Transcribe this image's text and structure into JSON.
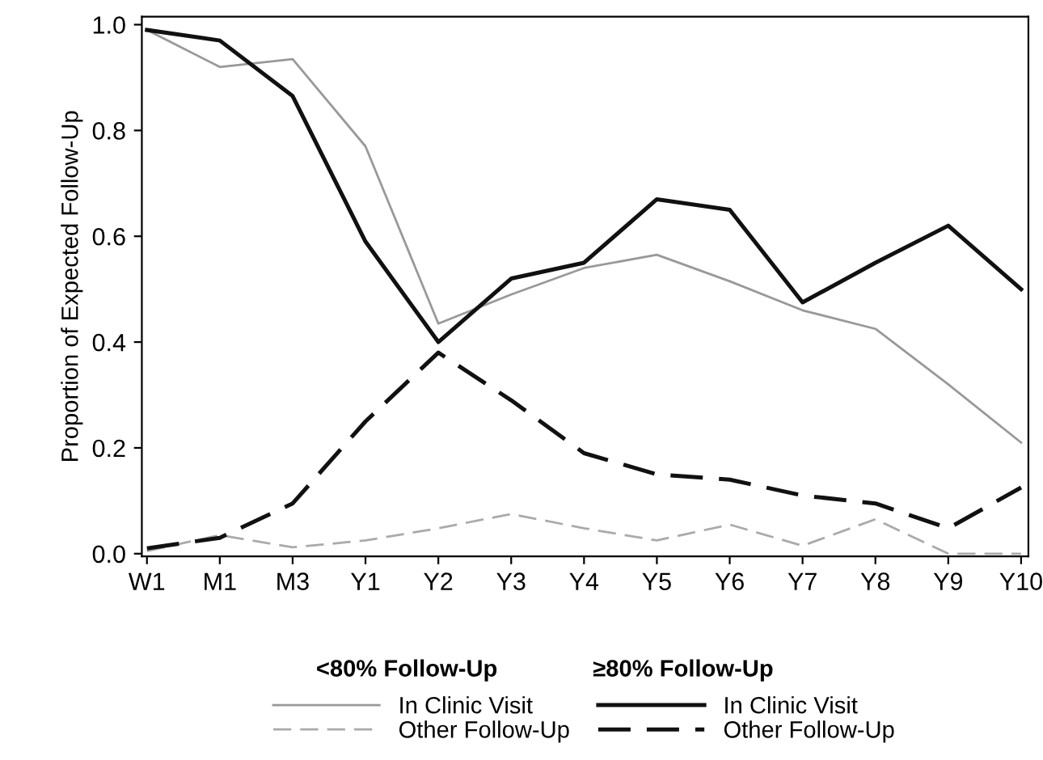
{
  "chart_data": {
    "type": "line",
    "ylabel": "Proportion of Expected Follow-Up",
    "categories": [
      "W1",
      "M1",
      "M3",
      "Y1",
      "Y2",
      "Y3",
      "Y4",
      "Y5",
      "Y6",
      "Y7",
      "Y8",
      "Y9",
      "Y10"
    ],
    "series": [
      {
        "name": "In Clinic Visit",
        "color": "#999999",
        "line_style": "solid",
        "values": [
          0.99,
          0.92,
          0.935,
          0.77,
          0.435,
          0.49,
          0.54,
          0.565,
          0.515,
          0.46,
          0.425,
          0.32,
          0.21
        ]
      },
      {
        "name": "Other Follow-Up",
        "color": "#aaaaaa",
        "line_style": "dashed",
        "values": [
          0.005,
          0.035,
          0.012,
          0.025,
          0.048,
          0.075,
          0.048,
          0.025,
          0.055,
          0.015,
          0.065,
          0.0,
          0.0
        ]
      },
      {
        "name": "In Clinic Visit",
        "color": "#111111",
        "line_style": "solid",
        "values": [
          0.99,
          0.97,
          0.865,
          0.59,
          0.4,
          0.52,
          0.55,
          0.67,
          0.65,
          0.475,
          0.55,
          0.62,
          0.5
        ]
      },
      {
        "name": "Other Follow-Up",
        "color": "#111111",
        "line_style": "dashed",
        "values": [
          0.01,
          0.03,
          0.095,
          0.25,
          0.38,
          0.29,
          0.19,
          0.15,
          0.14,
          0.11,
          0.095,
          0.048,
          0.125
        ]
      }
    ],
    "ylim": [
      -0.005,
      1.015
    ],
    "yticks": [
      {
        "value": 0,
        "label": "0.0"
      },
      0.2,
      0.4,
      0.6,
      0.8,
      {
        "value": 1.0,
        "label": "1.0"
      }
    ],
    "grid": false,
    "legend": "bottom",
    "marker": "none",
    "annotations": [
      "<80% Follow-Up",
      "≥80% Follow-Up"
    ]
  }
}
